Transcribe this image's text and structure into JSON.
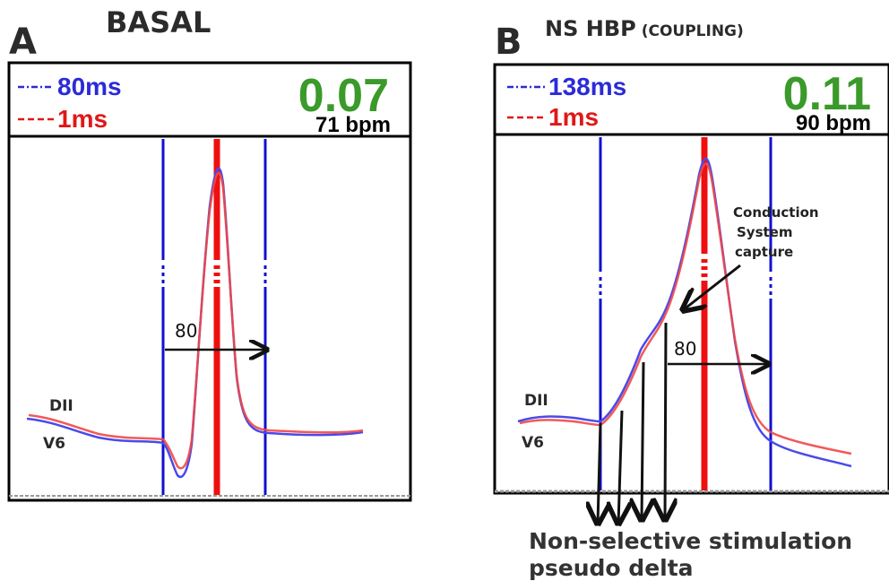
{
  "panel_a": {
    "letter": "A",
    "title": "BASAL",
    "legend_blue": "80ms",
    "legend_red": "1ms",
    "value": "0.07",
    "bpm": "71 bpm",
    "lead_top": "DII",
    "lead_bottom": "V6",
    "interval_label": "80"
  },
  "panel_b": {
    "letter": "B",
    "title_main": "NS HBP",
    "title_sub": "(COUPLING)",
    "legend_blue": "138ms",
    "legend_red": "1ms",
    "value": "0.11",
    "bpm": "90 bpm",
    "lead_top": "DII",
    "lead_bottom": "V6",
    "interval_label": "80",
    "annotation_lines": [
      "Conduction",
      "System",
      "capture"
    ]
  },
  "caption": {
    "line1": "Non-selective stimulation",
    "line2": "pseudo delta"
  },
  "colors": {
    "blue_trace": "#4a4ae8",
    "red_trace": "#f04848",
    "marker_blue": "#1010d0",
    "marker_red": "#ee1010",
    "value_green": "#3a9a2a"
  }
}
